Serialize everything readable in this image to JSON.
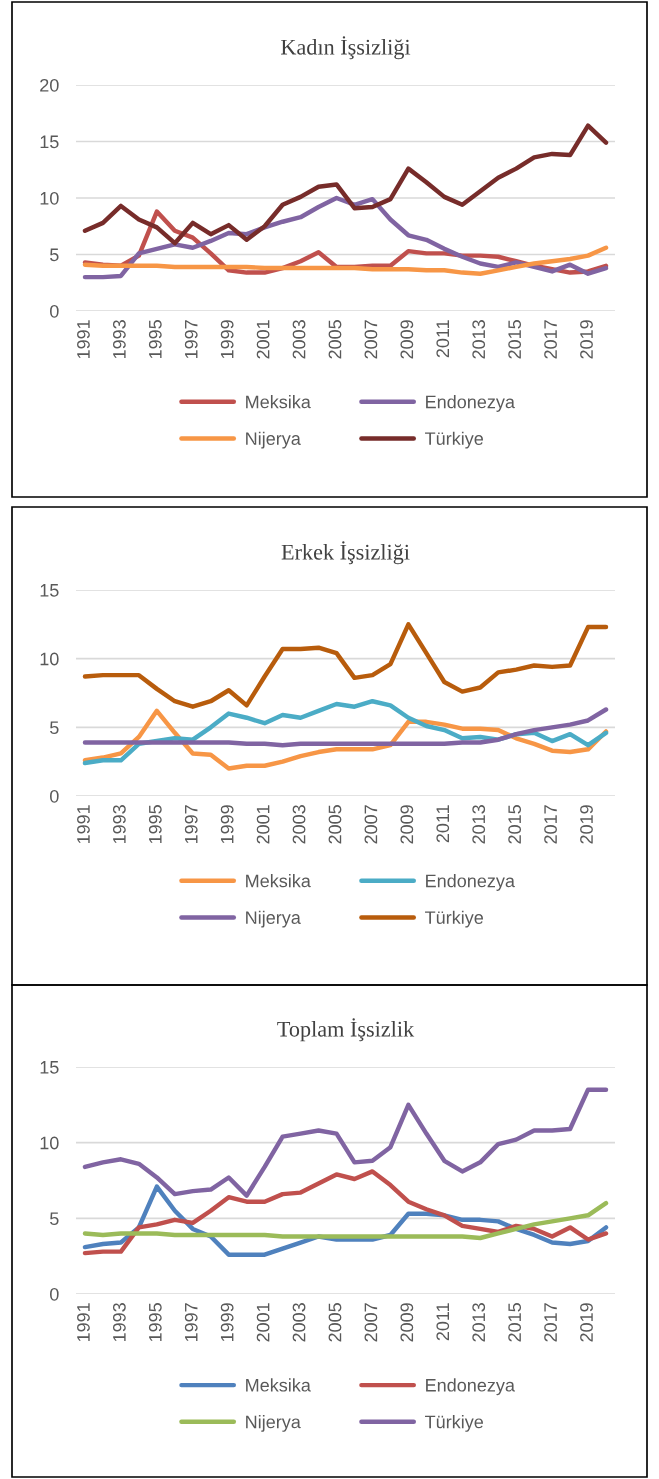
{
  "chart_data": [
    {
      "type": "line",
      "title": "Kadın İşsizliği",
      "categories": [
        "1991",
        null,
        "1993",
        null,
        "1995",
        null,
        "1997",
        null,
        "1999",
        null,
        "2001",
        null,
        "2003",
        null,
        "2005",
        null,
        "2007",
        null,
        "2009",
        null,
        "2011",
        null,
        "2013",
        null,
        "2015",
        null,
        "2017",
        null,
        "2019",
        null
      ],
      "ylim": [
        0,
        20
      ],
      "yticks": [
        0,
        5,
        10,
        15,
        20
      ],
      "grid": "y",
      "legend": "bottom",
      "series": [
        {
          "name": "Meksika",
          "color": "#c0504d",
          "values": [
            4.3,
            4.1,
            4.0,
            4.9,
            8.8,
            7.1,
            6.5,
            5.1,
            3.6,
            3.4,
            3.4,
            3.8,
            4.4,
            5.2,
            3.9,
            3.9,
            4.0,
            4.0,
            5.3,
            5.1,
            5.1,
            4.9,
            4.9,
            4.8,
            4.4,
            4.0,
            3.7,
            3.4,
            3.5,
            4.0
          ]
        },
        {
          "name": "Endonezya",
          "color": "#8064a2",
          "values": [
            3.0,
            3.0,
            3.1,
            5.1,
            5.5,
            5.9,
            5.6,
            6.2,
            6.9,
            6.8,
            7.4,
            7.9,
            8.3,
            9.2,
            10.0,
            9.4,
            9.9,
            8.1,
            6.7,
            6.3,
            5.5,
            4.8,
            4.2,
            3.9,
            4.3,
            3.9,
            3.5,
            4.1,
            3.3,
            3.8
          ]
        },
        {
          "name": "Nijerya",
          "color": "#f79646",
          "values": [
            4.1,
            4.0,
            4.0,
            4.0,
            4.0,
            3.9,
            3.9,
            3.9,
            3.9,
            3.9,
            3.8,
            3.8,
            3.8,
            3.8,
            3.8,
            3.8,
            3.7,
            3.7,
            3.7,
            3.6,
            3.6,
            3.4,
            3.3,
            3.6,
            3.9,
            4.2,
            4.4,
            4.6,
            4.9,
            5.6
          ]
        },
        {
          "name": "Türkiye",
          "color": "#772c2a",
          "values": [
            7.1,
            7.8,
            9.3,
            8.1,
            7.4,
            6.0,
            7.8,
            6.8,
            7.6,
            6.3,
            7.5,
            9.4,
            10.1,
            11.0,
            11.2,
            9.1,
            9.2,
            9.9,
            12.6,
            11.4,
            10.1,
            9.4,
            10.6,
            11.8,
            12.6,
            13.6,
            13.9,
            13.8,
            16.4,
            14.9
          ]
        }
      ]
    },
    {
      "type": "line",
      "title": "Erkek İşsizliği",
      "categories": [
        "1991",
        null,
        "1993",
        null,
        "1995",
        null,
        "1997",
        null,
        "1999",
        null,
        "2001",
        null,
        "2003",
        null,
        "2005",
        null,
        "2007",
        null,
        "2009",
        null,
        "2011",
        null,
        "2013",
        null,
        "2015",
        null,
        "2017",
        null,
        "2019",
        null
      ],
      "ylim": [
        0,
        15
      ],
      "yticks": [
        0,
        5,
        10,
        15
      ],
      "grid": "y",
      "legend": "bottom",
      "series": [
        {
          "name": "Meksika",
          "color": "#f79646",
          "values": [
            2.6,
            2.8,
            3.1,
            4.3,
            6.2,
            4.6,
            3.1,
            3.0,
            2.0,
            2.2,
            2.2,
            2.5,
            2.9,
            3.2,
            3.4,
            3.4,
            3.4,
            3.7,
            5.4,
            5.4,
            5.2,
            4.9,
            4.9,
            4.8,
            4.2,
            3.8,
            3.3,
            3.2,
            3.4,
            4.7
          ]
        },
        {
          "name": "Endonezya",
          "color": "#4bacc6",
          "values": [
            2.4,
            2.6,
            2.6,
            3.8,
            4.0,
            4.2,
            4.1,
            5.0,
            6.0,
            5.7,
            5.3,
            5.9,
            5.7,
            6.2,
            6.7,
            6.5,
            6.9,
            6.6,
            5.7,
            5.1,
            4.8,
            4.2,
            4.3,
            4.1,
            4.5,
            4.6,
            4.0,
            4.5,
            3.7,
            4.6
          ]
        },
        {
          "name": "Nijerya",
          "color": "#8064a2",
          "values": [
            3.9,
            3.9,
            3.9,
            3.9,
            3.9,
            3.9,
            3.9,
            3.9,
            3.9,
            3.8,
            3.8,
            3.7,
            3.8,
            3.8,
            3.8,
            3.8,
            3.8,
            3.8,
            3.8,
            3.8,
            3.8,
            3.9,
            3.9,
            4.1,
            4.5,
            4.8,
            5.0,
            5.2,
            5.5,
            6.3
          ]
        },
        {
          "name": "Türkiye",
          "color": "#b85c0c",
          "values": [
            8.7,
            8.8,
            8.8,
            8.8,
            7.8,
            6.9,
            6.5,
            6.9,
            7.7,
            6.6,
            8.7,
            10.7,
            10.7,
            10.8,
            10.4,
            8.6,
            8.8,
            9.6,
            12.5,
            10.4,
            8.3,
            7.6,
            7.9,
            9.0,
            9.2,
            9.5,
            9.4,
            9.5,
            12.3,
            12.3
          ]
        }
      ]
    },
    {
      "type": "line",
      "title": "Toplam İşsizlik",
      "categories": [
        "1991",
        null,
        "1993",
        null,
        "1995",
        null,
        "1997",
        null,
        "1999",
        null,
        "2001",
        null,
        "2003",
        null,
        "2005",
        null,
        "2007",
        null,
        "2009",
        null,
        "2011",
        null,
        "2013",
        null,
        "2015",
        null,
        "2017",
        null,
        "2019",
        null
      ],
      "ylim": [
        0,
        15
      ],
      "yticks": [
        0,
        5,
        10,
        15
      ],
      "grid": "y",
      "legend": "bottom",
      "series": [
        {
          "name": "Meksika",
          "color": "#4f81bd",
          "values": [
            3.1,
            3.3,
            3.4,
            4.4,
            7.1,
            5.5,
            4.3,
            3.8,
            2.6,
            2.6,
            2.6,
            3.0,
            3.4,
            3.8,
            3.6,
            3.6,
            3.6,
            3.9,
            5.3,
            5.3,
            5.2,
            4.9,
            4.9,
            4.8,
            4.3,
            3.9,
            3.4,
            3.3,
            3.5,
            4.4
          ]
        },
        {
          "name": "Endonezya",
          "color": "#c0504d",
          "values": [
            2.7,
            2.8,
            2.8,
            4.4,
            4.6,
            4.9,
            4.7,
            5.5,
            6.4,
            6.1,
            6.1,
            6.6,
            6.7,
            7.3,
            7.9,
            7.6,
            8.1,
            7.2,
            6.1,
            5.6,
            5.2,
            4.5,
            4.3,
            4.1,
            4.5,
            4.3,
            3.8,
            4.4,
            3.6,
            4.0
          ]
        },
        {
          "name": "Nijerya",
          "color": "#9bbb59",
          "values": [
            4.0,
            3.9,
            4.0,
            4.0,
            4.0,
            3.9,
            3.9,
            3.9,
            3.9,
            3.9,
            3.9,
            3.8,
            3.8,
            3.8,
            3.8,
            3.8,
            3.8,
            3.8,
            3.8,
            3.8,
            3.8,
            3.8,
            3.7,
            4.0,
            4.3,
            4.6,
            4.8,
            5.0,
            5.2,
            6.0
          ]
        },
        {
          "name": "Türkiye",
          "color": "#8064a2",
          "values": [
            8.4,
            8.7,
            8.9,
            8.6,
            7.7,
            6.6,
            6.8,
            6.9,
            7.7,
            6.5,
            8.4,
            10.4,
            10.6,
            10.8,
            10.6,
            8.7,
            8.8,
            9.7,
            12.5,
            10.6,
            8.8,
            8.1,
            8.7,
            9.9,
            10.2,
            10.8,
            10.8,
            10.9,
            13.5,
            13.5
          ]
        }
      ]
    }
  ]
}
